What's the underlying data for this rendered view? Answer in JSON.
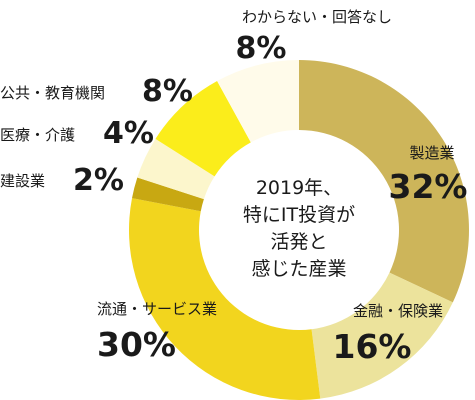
{
  "chart_data": {
    "type": "pie",
    "variant": "donut",
    "center_text": [
      "2019年、",
      "特にIT投資が",
      "活発と",
      "感じた産業"
    ],
    "slices": [
      {
        "label": "製造業",
        "value": 32,
        "value_label": "32%",
        "color": "#cdb55a"
      },
      {
        "label": "金融・保険業",
        "value": 16,
        "value_label": "16%",
        "color": "#ece39c"
      },
      {
        "label": "流通・サービス業",
        "value": 30,
        "value_label": "30%",
        "color": "#f2d51e"
      },
      {
        "label": "建設業",
        "value": 2,
        "value_label": "2%",
        "color": "#c8a812"
      },
      {
        "label": "医療・介護",
        "value": 4,
        "value_label": "4%",
        "color": "#fcf6cc"
      },
      {
        "label": "公共・教育機関",
        "value": 8,
        "value_label": "8%",
        "color": "#fbed1b"
      },
      {
        "label": "わからない・回答なし",
        "value": 8,
        "value_label": "8%",
        "color": "#fffbea"
      }
    ]
  }
}
